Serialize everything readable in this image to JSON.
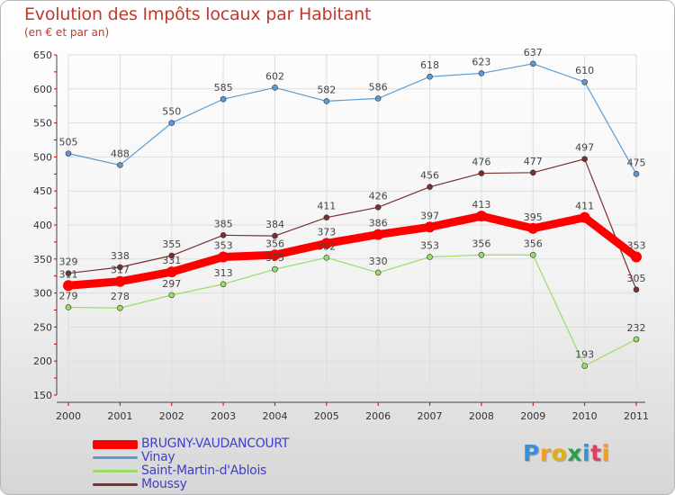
{
  "chart_data": {
    "type": "line",
    "title": "Evolution des Impôts locaux par Habitant",
    "subtitle": "(en € et par an)",
    "xlabel": "",
    "ylabel": "",
    "ylim": [
      150,
      650
    ],
    "y_ticks": [
      150,
      200,
      250,
      300,
      350,
      400,
      450,
      500,
      550,
      600,
      650
    ],
    "grid": true,
    "legend_position": "bottom-left",
    "categories": [
      "2000",
      "2001",
      "2002",
      "2003",
      "2004",
      "2005",
      "2006",
      "2007",
      "2008",
      "2009",
      "2010",
      "2011"
    ],
    "series": [
      {
        "name": "BRUGNY-VAUDANCOURT",
        "color": "#ff0000",
        "emphasis": true,
        "values": [
          311,
          317,
          331,
          353,
          356,
          373,
          386,
          397,
          413,
          395,
          411,
          353
        ]
      },
      {
        "name": "Vinay",
        "color": "#5b9bd5",
        "emphasis": false,
        "values": [
          505,
          488,
          550,
          585,
          602,
          582,
          586,
          618,
          623,
          637,
          610,
          475
        ]
      },
      {
        "name": "Saint-Martin-d'Ablois",
        "color": "#99dd66",
        "emphasis": false,
        "values": [
          279,
          278,
          297,
          313,
          335,
          352,
          330,
          353,
          356,
          356,
          193,
          232
        ]
      },
      {
        "name": "Moussy",
        "color": "#7b2f2f",
        "emphasis": false,
        "values": [
          329,
          338,
          355,
          385,
          384,
          411,
          426,
          456,
          476,
          477,
          497,
          305
        ]
      }
    ]
  },
  "branding": {
    "logo_text": "Proxiti"
  }
}
